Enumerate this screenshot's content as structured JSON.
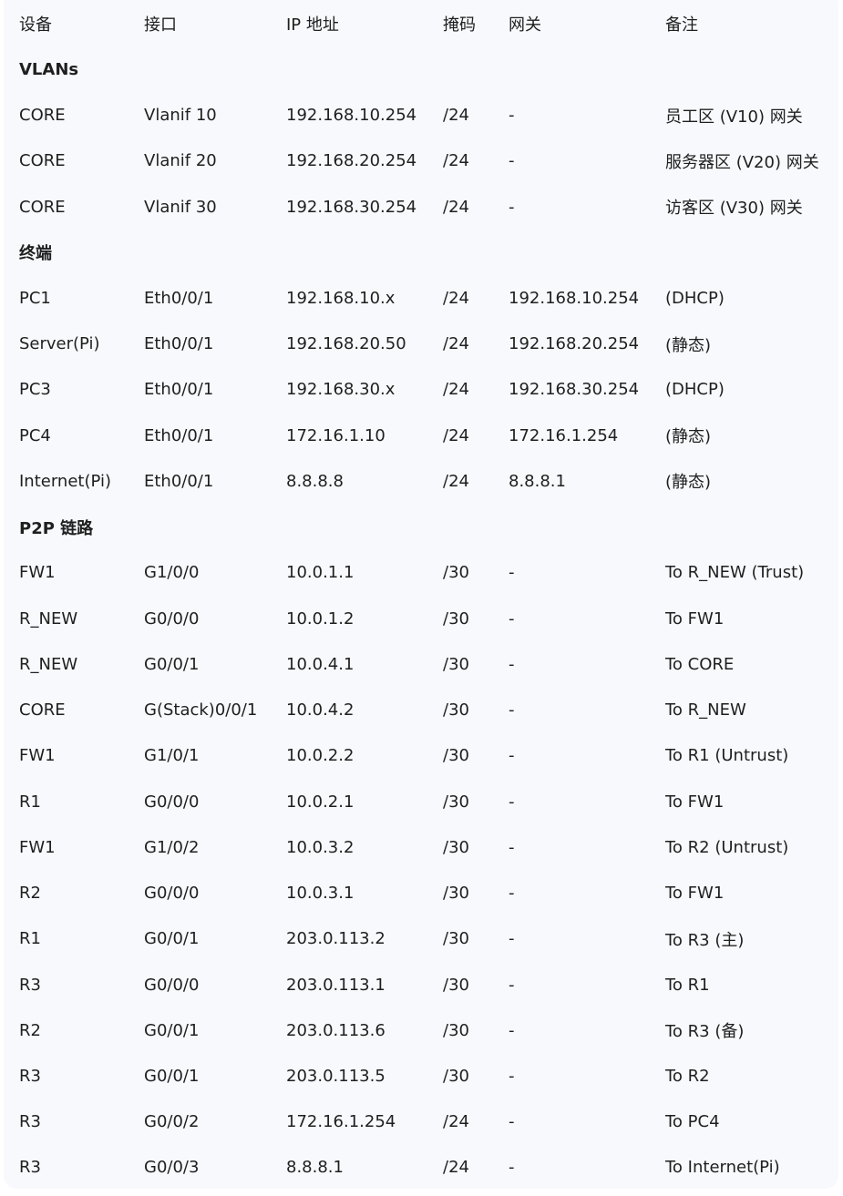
{
  "headers": [
    "设备",
    "接口",
    "IP 地址",
    "掩码",
    "网关",
    "备注"
  ],
  "rows": [
    {
      "section": "VLANs"
    },
    {
      "cells": [
        "CORE",
        "Vlanif 10",
        "192.168.10.254",
        "/24",
        "-",
        "员工区 (V10) 网关"
      ]
    },
    {
      "cells": [
        "CORE",
        "Vlanif 20",
        "192.168.20.254",
        "/24",
        "-",
        "服务器区 (V20) 网关"
      ]
    },
    {
      "cells": [
        "CORE",
        "Vlanif 30",
        "192.168.30.254",
        "/24",
        "-",
        "访客区 (V30) 网关"
      ]
    },
    {
      "section": "终端"
    },
    {
      "cells": [
        "PC1",
        "Eth0/0/1",
        "192.168.10.x",
        "/24",
        "192.168.10.254",
        "(DHCP)"
      ]
    },
    {
      "cells": [
        "Server(Pi)",
        "Eth0/0/1",
        "192.168.20.50",
        "/24",
        "192.168.20.254",
        "(静态)"
      ]
    },
    {
      "cells": [
        "PC3",
        "Eth0/0/1",
        "192.168.30.x",
        "/24",
        "192.168.30.254",
        "(DHCP)"
      ]
    },
    {
      "cells": [
        "PC4",
        "Eth0/0/1",
        "172.16.1.10",
        "/24",
        "172.16.1.254",
        "(静态)"
      ]
    },
    {
      "cells": [
        "Internet(Pi)",
        "Eth0/0/1",
        "8.8.8.8",
        "/24",
        "8.8.8.1",
        "(静态)"
      ]
    },
    {
      "section": "P2P 链路"
    },
    {
      "cells": [
        "FW1",
        "G1/0/0",
        "10.0.1.1",
        "/30",
        "-",
        "To R_NEW (Trust)"
      ]
    },
    {
      "cells": [
        "R_NEW",
        "G0/0/0",
        "10.0.1.2",
        "/30",
        "-",
        "To FW1"
      ]
    },
    {
      "cells": [
        "R_NEW",
        "G0/0/1",
        "10.0.4.1",
        "/30",
        "-",
        "To CORE"
      ]
    },
    {
      "cells": [
        "CORE",
        "G(Stack)0/0/1",
        "10.0.4.2",
        "/30",
        "-",
        "To R_NEW"
      ]
    },
    {
      "cells": [
        "FW1",
        "G1/0/1",
        "10.0.2.2",
        "/30",
        "-",
        "To R1 (Untrust)"
      ]
    },
    {
      "cells": [
        "R1",
        "G0/0/0",
        "10.0.2.1",
        "/30",
        "-",
        "To FW1"
      ]
    },
    {
      "cells": [
        "FW1",
        "G1/0/2",
        "10.0.3.2",
        "/30",
        "-",
        "To R2 (Untrust)"
      ]
    },
    {
      "cells": [
        "R2",
        "G0/0/0",
        "10.0.3.1",
        "/30",
        "-",
        "To FW1"
      ]
    },
    {
      "cells": [
        "R1",
        "G0/0/1",
        "203.0.113.2",
        "/30",
        "-",
        "To R3 (主)"
      ]
    },
    {
      "cells": [
        "R3",
        "G0/0/0",
        "203.0.113.1",
        "/30",
        "-",
        "To R1"
      ]
    },
    {
      "cells": [
        "R2",
        "G0/0/1",
        "203.0.113.6",
        "/30",
        "-",
        "To R3 (备)"
      ]
    },
    {
      "cells": [
        "R3",
        "G0/0/1",
        "203.0.113.5",
        "/30",
        "-",
        "To R2"
      ]
    },
    {
      "cells": [
        "R3",
        "G0/0/2",
        "172.16.1.254",
        "/24",
        "-",
        "To PC4"
      ]
    },
    {
      "cells": [
        "R3",
        "G0/0/3",
        "8.8.8.1",
        "/24",
        "-",
        "To Internet(Pi)"
      ]
    }
  ]
}
